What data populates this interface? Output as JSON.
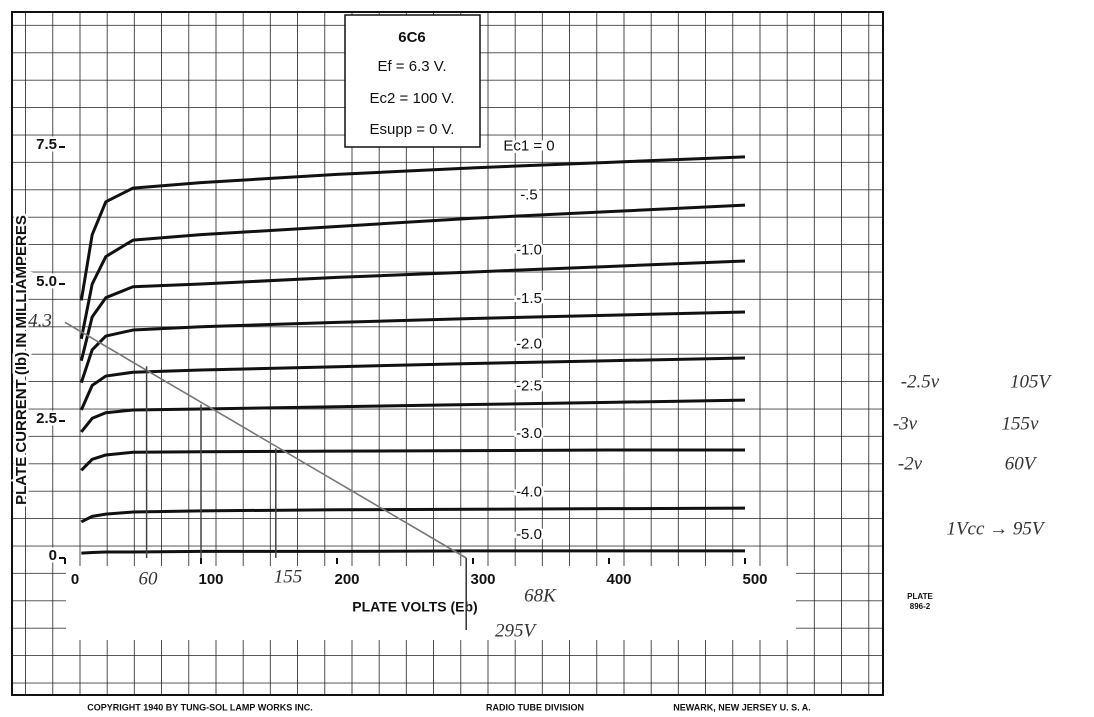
{
  "chart_data": {
    "type": "line",
    "title": "6C6",
    "conditions": [
      "Ef = 6.3 V.",
      "Ec2 = 100 V.",
      "Esupp = 0 V."
    ],
    "x_label": "PLATE VOLTS (Eb)",
    "y_label": "PLATE CURRENT (Ib) IN MILLIAMPERES",
    "x": [
      12,
      20,
      30,
      50,
      100,
      200,
      300,
      400,
      500
    ],
    "series": [
      {
        "name": "Ec1 = 0",
        "color": "#111",
        "values": [
          4.7,
          5.9,
          6.5,
          6.75,
          6.85,
          7.0,
          7.12,
          7.22,
          7.32
        ]
      },
      {
        "name": "-.5",
        "color": "#111",
        "values": [
          4.0,
          5.0,
          5.5,
          5.8,
          5.9,
          6.05,
          6.2,
          6.32,
          6.44
        ]
      },
      {
        "name": "-1.0",
        "color": "#111",
        "values": [
          3.6,
          4.4,
          4.75,
          4.95,
          5.0,
          5.12,
          5.22,
          5.32,
          5.42
        ]
      },
      {
        "name": "-1.5",
        "color": "#111",
        "values": [
          3.2,
          3.8,
          4.05,
          4.16,
          4.22,
          4.3,
          4.37,
          4.43,
          4.49
        ]
      },
      {
        "name": "-2.0",
        "color": "#111",
        "values": [
          2.7,
          3.15,
          3.32,
          3.39,
          3.43,
          3.49,
          3.55,
          3.6,
          3.65
        ]
      },
      {
        "name": "-2.5",
        "color": "#111",
        "values": [
          2.3,
          2.55,
          2.65,
          2.7,
          2.72,
          2.76,
          2.8,
          2.84,
          2.88
        ]
      },
      {
        "name": "-3.0",
        "color": "#111",
        "values": [
          1.6,
          1.8,
          1.88,
          1.93,
          1.94,
          1.95,
          1.96,
          1.97,
          1.97
        ]
      },
      {
        "name": "-4.0",
        "color": "#111",
        "values": [
          0.66,
          0.76,
          0.8,
          0.84,
          0.86,
          0.88,
          0.89,
          0.9,
          0.91
        ]
      },
      {
        "name": "-5.0",
        "color": "#111",
        "values": [
          0.09,
          0.1,
          0.11,
          0.11,
          0.12,
          0.12,
          0.13,
          0.13,
          0.13
        ]
      }
    ],
    "load_line": {
      "color": "#777",
      "x": [
        0,
        295
      ],
      "values": [
        4.3,
        0
      ]
    },
    "operating_points": {
      "color": "#444",
      "x": [
        60,
        100,
        155
      ],
      "values": [
        3.5,
        2.8,
        2.0
      ]
    },
    "xlim": [
      0,
      500
    ],
    "ylim": [
      0,
      10
    ],
    "xticks": [
      0,
      100,
      200,
      300,
      400,
      500
    ],
    "yticks": [
      0,
      2.5,
      {
        "value": 5,
        "label": "5.0"
      },
      7.5
    ],
    "annotations": [
      "4.3",
      "60",
      "155",
      "68K",
      "295V",
      "-2.5v",
      "105V",
      "-3v",
      "155v",
      "-2v",
      "60V",
      "1Vcc → 95V"
    ],
    "plate_label": [
      "PLATE",
      "896-2"
    ],
    "footer": [
      "COPYRIGHT 1940 BY TUNG-SOL LAMP WORKS INC.",
      "RADIO TUBE DIVISION",
      "NEWARK, NEW JERSEY U. S. A."
    ]
  }
}
